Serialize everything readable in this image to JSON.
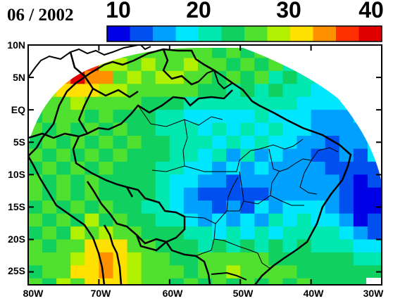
{
  "map": {
    "date_label": "06 / 2002",
    "colorbar": {
      "tick_labels": [
        "10",
        "20",
        "30",
        "40"
      ],
      "min": 10,
      "max": 40,
      "colors": [
        "#0000e6",
        "#0050f0",
        "#00a0ff",
        "#00e6ff",
        "#00e8b0",
        "#10d060",
        "#50e030",
        "#b0f000",
        "#ffe000",
        "#ff9000",
        "#ff3000",
        "#e00000"
      ]
    },
    "lon_labels": [
      "80W",
      "70W",
      "60W",
      "50W",
      "40W",
      "30W"
    ],
    "lat_labels": [
      "10N",
      "5N",
      "EQ",
      "5S",
      "10S",
      "15S",
      "20S",
      "25S"
    ],
    "lon_ticks": [
      -80,
      -70,
      -60,
      -50,
      -40,
      -30
    ],
    "lat_ticks": [
      10,
      5,
      0,
      -5,
      -10,
      -15,
      -20,
      -25
    ],
    "extent": {
      "lon": [
        -80,
        -30
      ],
      "lat": [
        -27,
        10
      ]
    },
    "field_summary": [
      {
        "region": "far northwest (Colombia/Venezuela coast)",
        "value_range": [
          33,
          38
        ]
      },
      {
        "region": "western Amazon",
        "value_range": [
          24,
          28
        ]
      },
      {
        "region": "central Brazil",
        "value_range": [
          12,
          17
        ]
      },
      {
        "region": "northeast Brazil coast",
        "value_range": [
          10,
          14
        ]
      },
      {
        "region": "southwest (Paraguay/Bolivia)",
        "value_range": [
          31,
          34
        ]
      },
      {
        "region": "south Brazil",
        "value_range": [
          22,
          26
        ]
      }
    ]
  }
}
